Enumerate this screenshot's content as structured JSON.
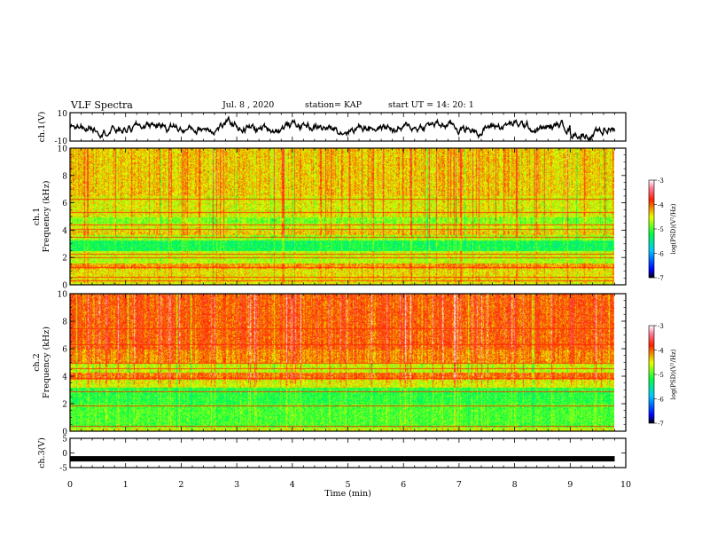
{
  "header": {
    "title": "VLF Spectra",
    "date": "Jul. 8 , 2020",
    "station": "station= KAP",
    "start_time": "start UT =  14: 20: 1"
  },
  "chart_data": [
    {
      "type": "line",
      "id": "ch1-waveform",
      "ylabel": "ch.1(V)",
      "ylim": [
        -10,
        10
      ],
      "yticks": [
        "10",
        "-10"
      ],
      "xlim": [
        0,
        10
      ],
      "note": "noisy waveform of ch.1 voltage over 0–9.8 min"
    },
    {
      "type": "heatmap",
      "id": "ch1-spectrogram",
      "ylabel": "ch.1\nFrequency (kHz)",
      "ylim": [
        0,
        10
      ],
      "yticks": [
        "0",
        "2",
        "4",
        "6",
        "8",
        "10"
      ],
      "xlim": [
        0,
        10
      ],
      "colorbar": {
        "label": "log(PSD)(V²/Hz)",
        "range": [
          -7,
          -3
        ],
        "ticks": [
          "-3",
          "-4",
          "-5",
          "-6",
          "-7"
        ]
      }
    },
    {
      "type": "heatmap",
      "id": "ch2-spectrogram",
      "ylabel": "ch.2\nFrequency (kHz)",
      "ylim": [
        0,
        10
      ],
      "yticks": [
        "0",
        "2",
        "4",
        "6",
        "8",
        "10"
      ],
      "xlim": [
        0,
        10
      ],
      "colorbar": {
        "label": "log(PSD)(V²/Hz)",
        "range": [
          -7,
          -3
        ],
        "ticks": [
          "-3",
          "-4",
          "-5",
          "-6",
          "-7"
        ]
      }
    },
    {
      "type": "line",
      "id": "ch3-waveform",
      "ylabel": "ch.3(V)",
      "ylim": [
        -5,
        5
      ],
      "yticks": [
        "5",
        "0",
        "-5"
      ],
      "xlim": [
        0,
        10
      ],
      "values_note": "near-constant at about -2 V",
      "level": -2
    }
  ],
  "xaxis": {
    "label": "Time (min)",
    "ticks": [
      "0",
      "1",
      "2",
      "3",
      "4",
      "5",
      "6",
      "7",
      "8",
      "9",
      "10"
    ]
  },
  "colorbar_ylabel_parts": {
    "pre": "log(PSD)(V",
    "sup": "2",
    "post": "/Hz)"
  }
}
